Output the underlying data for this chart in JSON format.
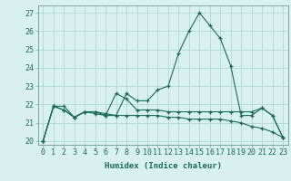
{
  "x": [
    0,
    1,
    2,
    3,
    4,
    5,
    6,
    7,
    8,
    9,
    10,
    11,
    12,
    13,
    14,
    15,
    16,
    17,
    18,
    19,
    20,
    21,
    22,
    23
  ],
  "line1": [
    20.0,
    21.9,
    21.9,
    21.3,
    21.6,
    21.6,
    21.5,
    21.4,
    22.6,
    22.2,
    22.2,
    22.8,
    23.0,
    24.8,
    26.0,
    27.0,
    26.3,
    25.6,
    24.1,
    21.4,
    21.4,
    21.8,
    21.4,
    20.2
  ],
  "line2": [
    20.0,
    21.9,
    21.7,
    21.3,
    21.6,
    21.6,
    21.4,
    22.6,
    22.3,
    21.7,
    21.7,
    21.7,
    21.6,
    21.6,
    21.6,
    21.6,
    21.6,
    21.6,
    21.6,
    21.6,
    21.6,
    21.8,
    21.4,
    20.2
  ],
  "line3": [
    20.0,
    21.9,
    21.7,
    21.3,
    21.6,
    21.5,
    21.4,
    21.4,
    21.4,
    21.4,
    21.4,
    21.4,
    21.3,
    21.3,
    21.2,
    21.2,
    21.2,
    21.2,
    21.1,
    21.0,
    20.8,
    20.7,
    20.5,
    20.2
  ],
  "line_color": "#1a6b5a",
  "bg_color": "#d8f0ee",
  "grid_color": "#b0d8d4",
  "xlabel": "Humidex (Indice chaleur)",
  "ylabel_ticks": [
    20,
    21,
    22,
    23,
    24,
    25,
    26,
    27
  ],
  "xlim": [
    -0.5,
    23.5
  ],
  "ylim": [
    19.8,
    27.4
  ],
  "xtick_labels": [
    "0",
    "1",
    "2",
    "3",
    "4",
    "5",
    "6",
    "7",
    "8",
    "9",
    "10",
    "11",
    "12",
    "13",
    "14",
    "15",
    "16",
    "17",
    "18",
    "19",
    "20",
    "21",
    "22",
    "23"
  ]
}
